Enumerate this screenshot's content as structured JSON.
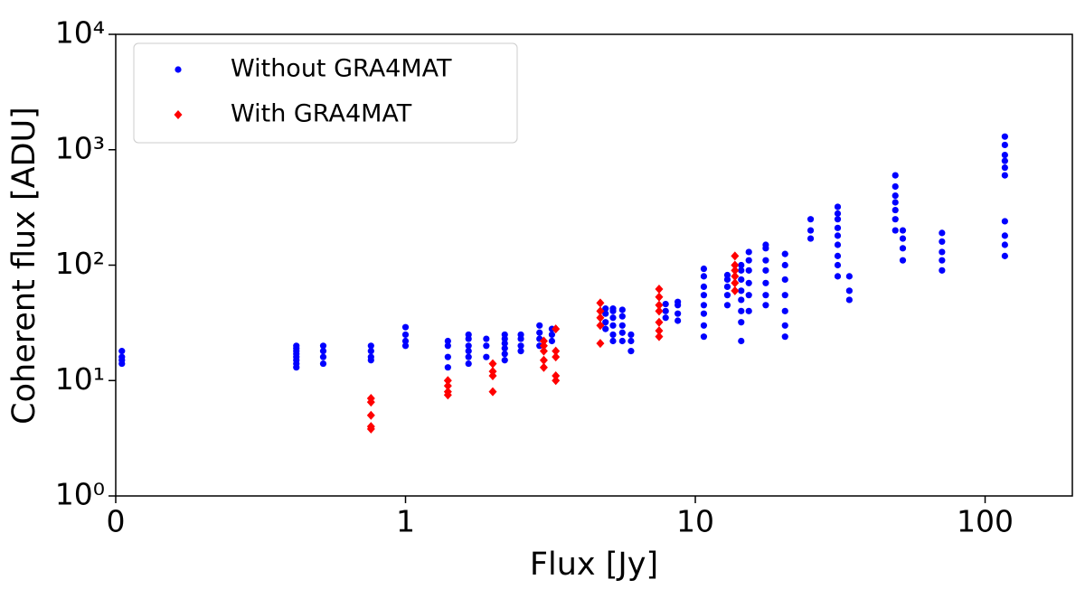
{
  "chart_data": {
    "type": "scatter",
    "x_label": "Flux [Jy]",
    "y_label": "Coherent flux [ADU]",
    "x_log": true,
    "y_log": true,
    "legend": "upper left",
    "xlim": [
      0.1,
      200
    ],
    "ylim": [
      1,
      10000
    ],
    "xticks": [
      {
        "value": 0.1,
        "label": "0"
      },
      1,
      10,
      100
    ],
    "yticks": [
      {
        "value": 1,
        "label": "10⁰"
      },
      {
        "value": 10,
        "label": "10¹"
      },
      {
        "value": 100,
        "label": "10²"
      },
      {
        "value": 1000,
        "label": "10³"
      },
      {
        "value": 10000,
        "label": "10⁴"
      }
    ],
    "series": [
      {
        "name": "Without GRA4MAT",
        "color": "#0000ff",
        "marker": "circle",
        "x": [
          0.105,
          0.105,
          0.105,
          0.105,
          0.42,
          0.42,
          0.42,
          0.42,
          0.42,
          0.42,
          0.42,
          0.42,
          0.52,
          0.52,
          0.52,
          0.52,
          0.76,
          0.76,
          0.76,
          0.76,
          1.0,
          1.0,
          1.0,
          1.0,
          1.4,
          1.4,
          1.4,
          1.4,
          1.65,
          1.65,
          1.65,
          1.65,
          1.65,
          1.65,
          1.9,
          1.9,
          1.9,
          2.2,
          2.2,
          2.2,
          2.2,
          2.2,
          2.2,
          2.5,
          2.5,
          2.5,
          2.5,
          2.9,
          2.9,
          2.9,
          2.9,
          3.2,
          3.2,
          3.2,
          4.9,
          4.9,
          4.9,
          4.9,
          5.2,
          5.2,
          5.2,
          5.2,
          5.2,
          5.2,
          5.6,
          5.6,
          5.6,
          5.6,
          5.6,
          6.0,
          6.0,
          6.0,
          7.9,
          7.9,
          7.9,
          8.7,
          8.7,
          8.7,
          8.7,
          10.7,
          10.7,
          10.7,
          10.7,
          10.7,
          10.7,
          10.7,
          10.7,
          12.9,
          12.9,
          12.9,
          12.9,
          12.9,
          14.4,
          14.4,
          14.4,
          14.4,
          14.4,
          14.4,
          14.4,
          14.4,
          15.3,
          15.3,
          15.3,
          15.3,
          15.3,
          15.3,
          17.5,
          17.5,
          17.5,
          17.5,
          17.5,
          17.5,
          17.5,
          20.4,
          20.4,
          20.4,
          20.4,
          20.4,
          20.4,
          20.4,
          25,
          25,
          25,
          31,
          31,
          31,
          31,
          31,
          31,
          31,
          31,
          31,
          34,
          34,
          34,
          49,
          49,
          49,
          49,
          49,
          49,
          49,
          52,
          52,
          52,
          52,
          71,
          71,
          71,
          71,
          71,
          117,
          117,
          117,
          117,
          117,
          117,
          117,
          117,
          117,
          117
        ],
        "values": [
          14,
          15,
          16,
          18,
          13,
          14,
          15,
          16,
          17,
          18,
          19,
          20,
          14,
          16,
          18,
          20,
          15,
          16,
          18,
          20,
          20,
          22,
          25,
          29,
          13,
          16,
          20,
          22,
          14,
          16,
          18,
          20,
          23,
          25,
          16,
          20,
          23,
          15,
          17,
          19,
          21,
          23,
          25,
          18,
          20,
          23,
          25,
          20,
          23,
          26,
          30,
          22,
          25,
          28,
          28,
          32,
          38,
          42,
          22,
          25,
          30,
          35,
          40,
          42,
          22,
          26,
          30,
          36,
          41,
          18,
          22,
          25,
          35,
          40,
          46,
          33,
          38,
          45,
          48,
          24,
          30,
          38,
          45,
          55,
          65,
          80,
          93,
          45,
          55,
          65,
          75,
          82,
          22,
          32,
          40,
          50,
          60,
          75,
          90,
          100,
          40,
          55,
          70,
          90,
          110,
          130,
          45,
          55,
          70,
          90,
          110,
          140,
          150,
          24,
          30,
          40,
          55,
          75,
          100,
          125,
          170,
          200,
          250,
          80,
          100,
          120,
          150,
          180,
          210,
          250,
          280,
          320,
          50,
          60,
          80,
          200,
          250,
          300,
          350,
          400,
          480,
          600,
          110,
          140,
          170,
          200,
          90,
          110,
          130,
          160,
          190,
          120,
          150,
          180,
          240,
          600,
          700,
          800,
          900,
          1100,
          1300
        ]
      },
      {
        "name": "With GRA4MAT",
        "color": "#ff0000",
        "marker": "diamond",
        "x": [
          0.76,
          0.76,
          0.76,
          0.76,
          0.76,
          1.4,
          1.4,
          1.4,
          1.4,
          2.0,
          2.0,
          2.0,
          2.0,
          3.0,
          3.0,
          3.0,
          3.0,
          3.0,
          3.3,
          3.3,
          3.3,
          3.3,
          3.3,
          4.7,
          4.7,
          4.7,
          4.7,
          4.7,
          7.5,
          7.5,
          7.5,
          7.5,
          7.5,
          7.5,
          7.5,
          13.7,
          13.7,
          13.7,
          13.7,
          13.7,
          13.7
        ],
        "values": [
          3.8,
          4,
          5,
          6.5,
          7,
          7.5,
          8,
          9,
          10,
          8,
          11,
          12,
          14,
          13,
          15,
          18,
          20,
          22,
          10,
          11,
          16,
          18,
          28,
          21,
          30,
          35,
          40,
          47,
          24,
          27,
          32,
          40,
          45,
          53,
          62,
          60,
          70,
          80,
          90,
          100,
          120
        ]
      }
    ]
  }
}
